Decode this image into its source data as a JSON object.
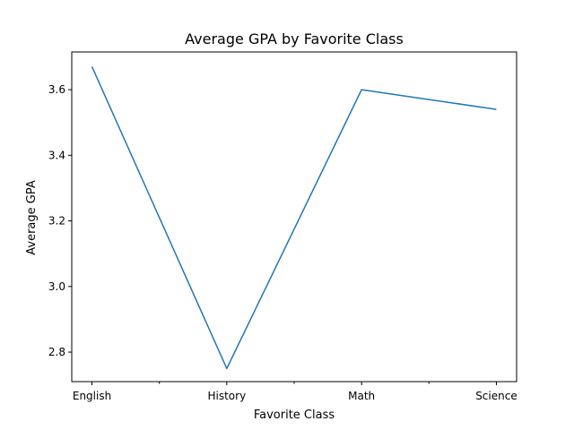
{
  "chart_data": {
    "type": "line",
    "title": "Average GPA by Favorite Class",
    "xlabel": "Favorite Class",
    "ylabel": "Average GPA",
    "categories": [
      "English",
      "History",
      "Math",
      "Science"
    ],
    "series": [
      {
        "values": [
          3.67,
          2.75,
          3.6,
          3.54
        ],
        "color": "#1f77b4"
      }
    ],
    "ylim": [
      2.71,
      3.715
    ],
    "yticks": [
      2.8,
      3.0,
      3.2,
      3.4,
      3.6
    ],
    "ytick_labels": [
      "2.8",
      "3.0",
      "3.2",
      "3.4",
      "3.6"
    ],
    "grid": false,
    "legend": "none"
  }
}
